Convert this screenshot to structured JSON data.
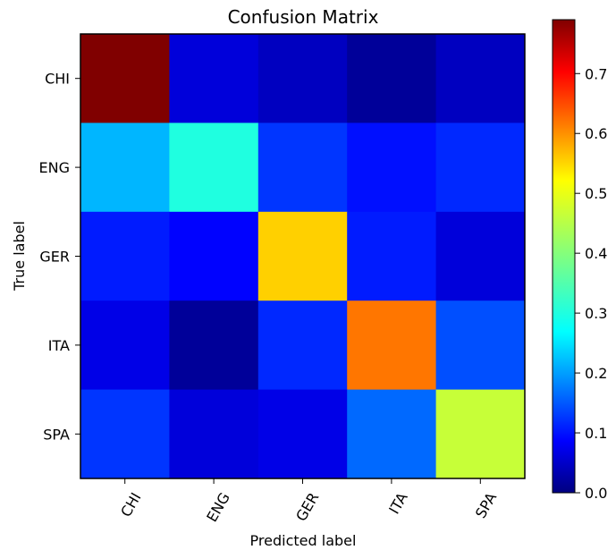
{
  "chart_data": {
    "type": "heatmap",
    "title": "Confusion Matrix",
    "xlabel": "Predicted label",
    "ylabel": "True label",
    "x_categories": [
      "CHI",
      "ENG",
      "GER",
      "ITA",
      "SPA"
    ],
    "y_categories": [
      "CHI",
      "ENG",
      "GER",
      "ITA",
      "SPA"
    ],
    "values": [
      [
        0.79,
        0.07,
        0.05,
        0.02,
        0.05
      ],
      [
        0.24,
        0.32,
        0.14,
        0.11,
        0.13
      ],
      [
        0.12,
        0.1,
        0.53,
        0.12,
        0.07
      ],
      [
        0.08,
        0.02,
        0.13,
        0.6,
        0.16
      ],
      [
        0.14,
        0.07,
        0.08,
        0.18,
        0.45
      ]
    ],
    "colormap": "jet",
    "colorbar": {
      "range": [
        0.0,
        0.79
      ],
      "ticks": [
        0.0,
        0.1,
        0.2,
        0.3,
        0.4,
        0.5,
        0.6,
        0.7
      ],
      "tick_labels": [
        "0.0",
        "0.1",
        "0.2",
        "0.3",
        "0.4",
        "0.5",
        "0.6",
        "0.7"
      ]
    },
    "grid": false
  }
}
